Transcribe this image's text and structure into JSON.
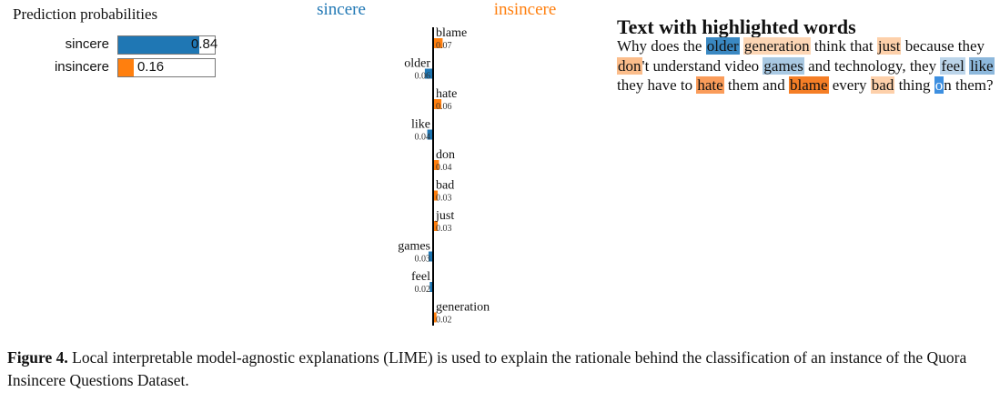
{
  "prediction": {
    "title": "Prediction probabilities",
    "classes": [
      {
        "label": "sincere",
        "value": 0.84,
        "display": "0.84",
        "color": "#1f77b4"
      },
      {
        "label": "insincere",
        "value": 0.16,
        "display": "0.16",
        "color": "#ff7f0e"
      }
    ]
  },
  "chart_data": {
    "type": "bar",
    "orientation": "horizontal-diverging",
    "left_class": {
      "label": "sincere",
      "color": "#1f77b4"
    },
    "right_class": {
      "label": "insincere",
      "color": "#ff7f0e"
    },
    "features": [
      {
        "word": "blame",
        "weight": 0.07,
        "label": "0.07",
        "side": "insincere"
      },
      {
        "word": "older",
        "weight": 0.06,
        "label": "0.06",
        "side": "sincere"
      },
      {
        "word": "hate",
        "weight": 0.06,
        "label": "0.06",
        "side": "insincere"
      },
      {
        "word": "like",
        "weight": 0.04,
        "label": "0.04",
        "side": "sincere"
      },
      {
        "word": "don",
        "weight": 0.04,
        "label": "0.04",
        "side": "insincere"
      },
      {
        "word": "bad",
        "weight": 0.03,
        "label": "0.03",
        "side": "insincere"
      },
      {
        "word": "just",
        "weight": 0.03,
        "label": "0.03",
        "side": "insincere"
      },
      {
        "word": "games",
        "weight": 0.03,
        "label": "0.03",
        "side": "sincere"
      },
      {
        "word": "feel",
        "weight": 0.02,
        "label": "0.02",
        "side": "sincere"
      },
      {
        "word": "generation",
        "weight": 0.02,
        "label": "0.02",
        "side": "insincere"
      }
    ]
  },
  "highlight": {
    "title": "Text with highlighted words",
    "segments": [
      {
        "text": "Why does the "
      },
      {
        "text": "older",
        "bg": "#3a88c2",
        "fg": "#111"
      },
      {
        "text": " "
      },
      {
        "text": "generation",
        "bg": "#fdd6b5"
      },
      {
        "text": " think that "
      },
      {
        "text": "just",
        "bg": "#fdd0aa"
      },
      {
        "text": " because they "
      },
      {
        "text": "don",
        "bg": "#fbbd8b"
      },
      {
        "text": "'t understand video "
      },
      {
        "text": "games",
        "bg": "#a9c9e3"
      },
      {
        "text": " and technology, they "
      },
      {
        "text": "feel",
        "bg": "#bcd5ea"
      },
      {
        "text": " "
      },
      {
        "text": "like",
        "bg": "#8db8dc"
      },
      {
        "text": " they have to "
      },
      {
        "text": "hate",
        "bg": "#fa9c5a"
      },
      {
        "text": " them and "
      },
      {
        "text": "blame",
        "bg": "#f57e26"
      },
      {
        "text": " every "
      },
      {
        "text": "bad",
        "bg": "#fdd0aa"
      },
      {
        "text": " thing "
      },
      {
        "text": "o",
        "bg": "#3d8fe0",
        "fg": "#ffffff"
      },
      {
        "text": "n them?"
      }
    ]
  },
  "caption": {
    "label": "Figure 4.",
    "text": " Local interpretable model-agnostic explanations (LIME) is used to explain the rationale behind the classification of an instance of the Quora Insincere Questions Dataset."
  }
}
